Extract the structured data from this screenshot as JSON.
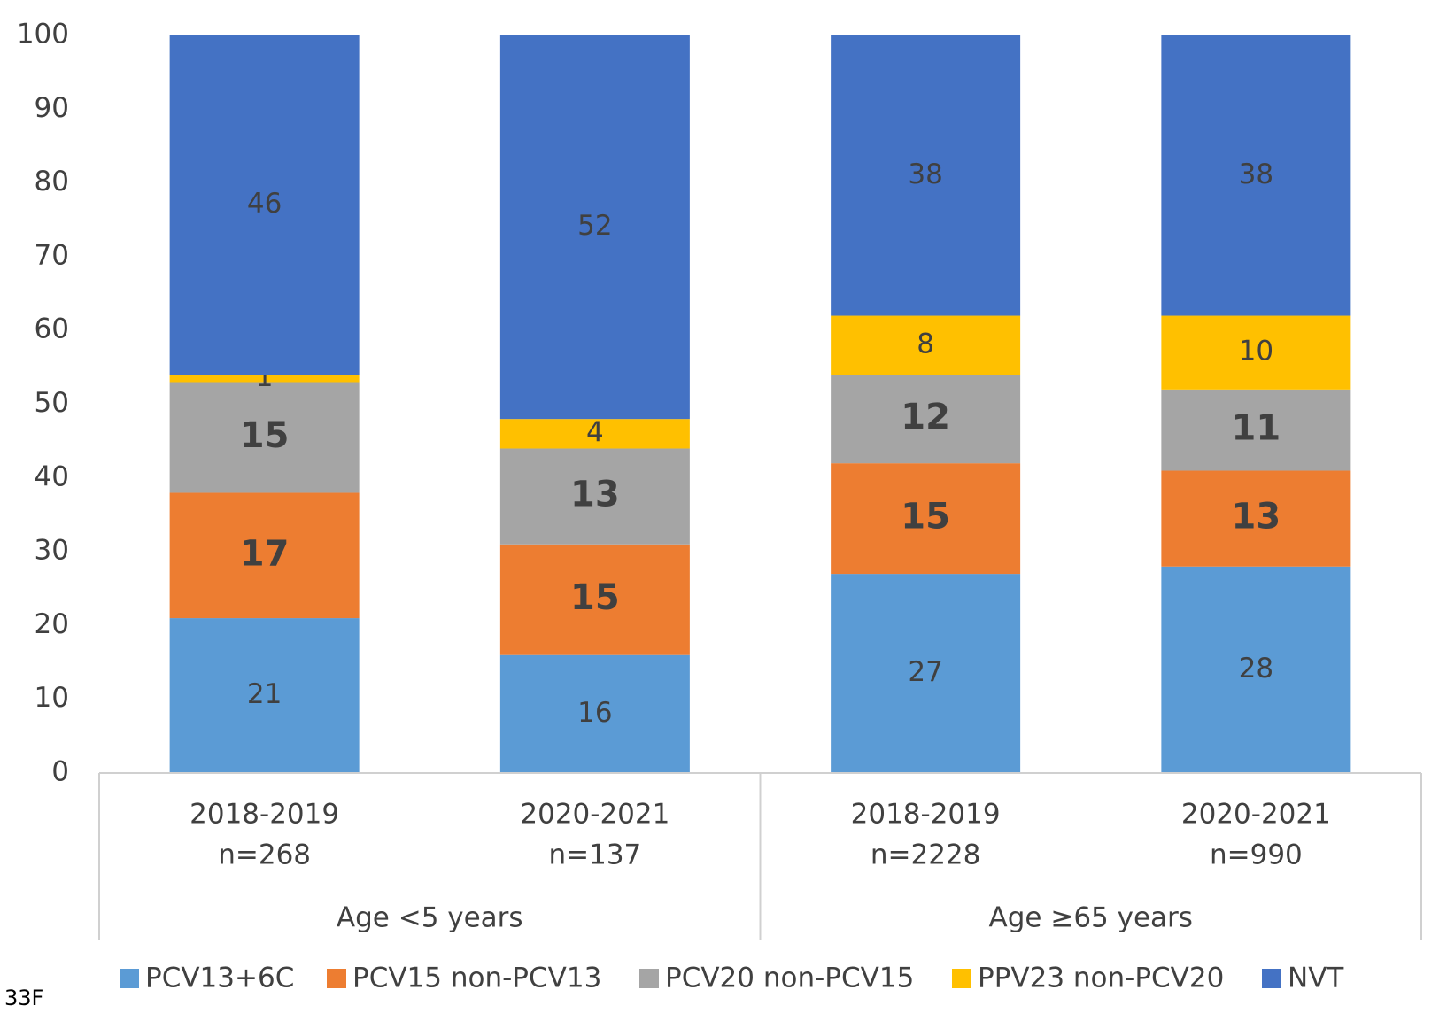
{
  "chart_data": {
    "type": "stacked_bar",
    "categories": [
      [
        "2018-2019",
        "n=268"
      ],
      [
        "2020-2021",
        "n=137"
      ],
      [
        "2018-2019",
        "n=2228"
      ],
      [
        "2020-2021",
        "n=990"
      ]
    ],
    "groups": [
      "Age <5 years",
      "Age ≥65 years"
    ],
    "series": [
      {
        "name": "PCV13+6C",
        "color": "#5b9bd5",
        "values": [
          21,
          16,
          27,
          28
        ]
      },
      {
        "name": "PCV15 non-PCV13",
        "color": "#ed7d31",
        "values": [
          17,
          15,
          15,
          13
        ]
      },
      {
        "name": "PCV20 non-PCV15",
        "color": "#a5a5a5",
        "values": [
          15,
          13,
          12,
          11
        ]
      },
      {
        "name": "PPV23 non-PCV20",
        "color": "#ffc000",
        "values": [
          1,
          4,
          8,
          10
        ]
      },
      {
        "name": "NVT",
        "color": "#4472c4",
        "values": [
          46,
          52,
          38,
          38
        ]
      }
    ],
    "ylim": [
      0,
      100
    ],
    "yticks": [
      0,
      10,
      20,
      30,
      40,
      50,
      60,
      70,
      80,
      90,
      100
    ],
    "legend": "bottom",
    "footnote": "33F"
  }
}
